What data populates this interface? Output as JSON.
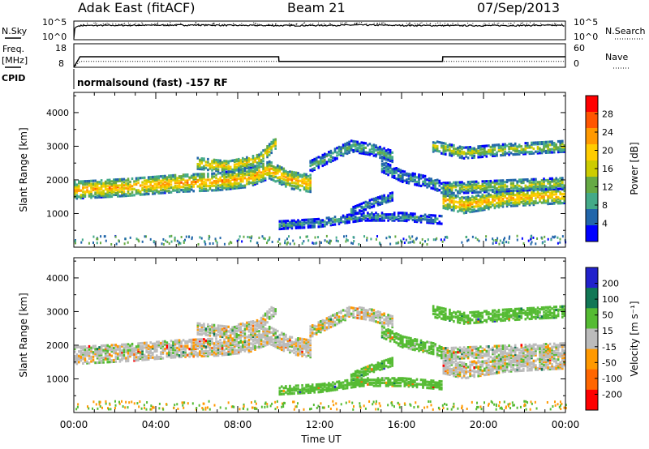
{
  "header": {
    "site": "Adak East (fitACF)",
    "beam": "Beam 21",
    "date": "07/Sep/2013"
  },
  "strips": {
    "nsky_label": "N.Sky",
    "nsearch_label": "N.Search",
    "noise_ticks": [
      "10^5",
      "10^0"
    ],
    "freq_label": "Freq.",
    "freq_unit": "[MHz]",
    "freq_ticks": [
      "18",
      "8"
    ],
    "nave_label": "Nave",
    "nave_ticks": [
      "60",
      "0"
    ],
    "cpid_label": "CPID",
    "cpid_text": "normalsound (fast) -157 RF"
  },
  "axes": {
    "ylabel": "Slant Range [km]",
    "yticks": [
      1000,
      2000,
      3000,
      4000
    ],
    "ylim": [
      0,
      4600
    ],
    "xlabel": "Time UT",
    "xticks": [
      "00:00",
      "04:00",
      "08:00",
      "12:00",
      "16:00",
      "20:00",
      "00:00"
    ],
    "xlim_hours": [
      0,
      24
    ]
  },
  "colorbars": {
    "power": {
      "label": "Power [dB]",
      "ticks": [
        "28",
        "24",
        "20",
        "16",
        "12",
        "8",
        "4"
      ],
      "colors": [
        "#ff0000",
        "#ff5500",
        "#ff9900",
        "#ffcc00",
        "#cccc00",
        "#66aa44",
        "#44aa88",
        "#2266aa",
        "#0000ff"
      ]
    },
    "velocity": {
      "label": "Velocity [m s⁻¹]",
      "ticks": [
        "200",
        "100",
        "50",
        "15",
        "-15",
        "-50",
        "-100",
        "-200"
      ],
      "colors": [
        "#2222cc",
        "#117755",
        "#55bb33",
        "#bbbbbb",
        "#ff9900",
        "#ff6600",
        "#ff0000"
      ]
    }
  },
  "chart_data": [
    {
      "type": "line",
      "title": "N.Sky / N.Search",
      "x": [
        0,
        0.3,
        2,
        4,
        6,
        8,
        10,
        12,
        14,
        16,
        18,
        20,
        22,
        24
      ],
      "series": [
        {
          "name": "N.Sky",
          "values": [
            1,
            8000,
            9000,
            10000,
            12000,
            9000,
            8000,
            9000,
            12000,
            9000,
            8000,
            8000,
            9000,
            9000
          ]
        }
      ]
    },
    {
      "type": "line",
      "title": "Freq. / Nave",
      "x": [
        0,
        0.3,
        10,
        10.01,
        18,
        18.01,
        24
      ],
      "series": [
        {
          "name": "Freq. [MHz]",
          "values": [
            8,
            12.5,
            12.5,
            10.5,
            10.5,
            12.5,
            12.5
          ]
        },
        {
          "name": "Nave",
          "values": [
            0,
            15,
            15,
            15,
            15,
            15,
            15
          ]
        }
      ]
    },
    {
      "type": "heatmap",
      "title": "Power [dB]",
      "xlabel": "Time UT",
      "ylabel": "Slant Range [km]",
      "ylim": [
        0,
        4600
      ],
      "bands": [
        {
          "t": [
            0,
            2.5,
            5,
            7,
            8.5,
            9.5,
            10.5,
            11.5
          ],
          "r": [
            1700,
            1780,
            1900,
            1950,
            2050,
            2300,
            2000,
            1900
          ],
          "w": 520,
          "peak_db": 22
        },
        {
          "t": [
            6,
            7.5,
            9,
            9.8
          ],
          "r": [
            2500,
            2400,
            2600,
            3100
          ],
          "w": 350,
          "peak_db": 20
        },
        {
          "t": [
            11.5,
            12.5,
            13.5,
            14.5,
            15.5
          ],
          "r": [
            2400,
            2700,
            3000,
            2900,
            2700
          ],
          "w": 330,
          "peak_db": 12
        },
        {
          "t": [
            10,
            12,
            14,
            16,
            18
          ],
          "r": [
            650,
            720,
            900,
            900,
            800
          ],
          "w": 230,
          "peak_db": 10
        },
        {
          "t": [
            13.5,
            14.5,
            15.5
          ],
          "r": [
            1050,
            1300,
            1500
          ],
          "w": 230,
          "peak_db": 10
        },
        {
          "t": [
            15,
            16,
            17.5,
            18.5
          ],
          "r": [
            2400,
            2100,
            1900,
            1600
          ],
          "w": 330,
          "peak_db": 10
        },
        {
          "t": [
            18,
            19,
            20,
            21,
            22.5,
            24
          ],
          "r": [
            1400,
            1250,
            1350,
            1450,
            1500,
            1550
          ],
          "w": 480,
          "peak_db": 22
        },
        {
          "t": [
            18,
            20,
            22,
            24
          ],
          "r": [
            1750,
            1800,
            1850,
            1900
          ],
          "w": 330,
          "peak_db": 16
        },
        {
          "t": [
            17.5,
            19,
            21,
            24
          ],
          "r": [
            3000,
            2800,
            2900,
            3000
          ],
          "w": 330,
          "peak_db": 16
        }
      ]
    },
    {
      "type": "heatmap",
      "title": "Velocity [m s-1]",
      "xlabel": "Time UT",
      "ylabel": "Slant Range [km]",
      "ylim": [
        0,
        4600
      ],
      "bands": [
        {
          "t": [
            0,
            2.5,
            5,
            7,
            8.5,
            9.5,
            10.5,
            11.5
          ],
          "r": [
            1700,
            1780,
            1900,
            1950,
            2050,
            2300,
            2000,
            1900
          ],
          "w": 520,
          "vel": 0
        },
        {
          "t": [
            6,
            7.5,
            9,
            9.8
          ],
          "r": [
            2500,
            2400,
            2600,
            3100
          ],
          "w": 350,
          "vel": 0
        },
        {
          "t": [
            11.5,
            12.5,
            13.5,
            14.5,
            15.5
          ],
          "r": [
            2400,
            2700,
            3000,
            2900,
            2700
          ],
          "w": 330,
          "vel": 0
        },
        {
          "t": [
            10,
            12,
            14,
            16,
            18
          ],
          "r": [
            650,
            720,
            900,
            900,
            800
          ],
          "w": 230,
          "vel": 40
        },
        {
          "t": [
            13.5,
            14.5,
            15.5
          ],
          "r": [
            1050,
            1300,
            1500
          ],
          "w": 230,
          "vel": 40
        },
        {
          "t": [
            15,
            16,
            17.5,
            18.5
          ],
          "r": [
            2400,
            2100,
            1900,
            1600
          ],
          "w": 330,
          "vel": 30
        },
        {
          "t": [
            18,
            19,
            20,
            21,
            22.5,
            24
          ],
          "r": [
            1400,
            1250,
            1350,
            1450,
            1500,
            1550
          ],
          "w": 480,
          "vel": 0
        },
        {
          "t": [
            18,
            20,
            22,
            24
          ],
          "r": [
            1750,
            1800,
            1850,
            1900
          ],
          "w": 330,
          "vel": 0
        },
        {
          "t": [
            17.5,
            19,
            21,
            24
          ],
          "r": [
            3000,
            2800,
            2900,
            3000
          ],
          "w": 330,
          "vel": 40
        }
      ]
    }
  ]
}
